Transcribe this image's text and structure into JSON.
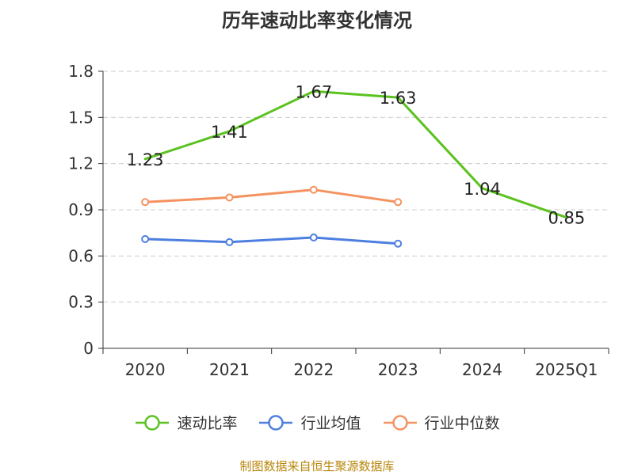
{
  "chart_data": {
    "type": "line",
    "title": "历年速动比率变化情况",
    "categories": [
      "2020",
      "2021",
      "2022",
      "2023",
      "2024",
      "2025Q1"
    ],
    "ylim": [
      0,
      1.8
    ],
    "yticks": [
      "0",
      "0.3",
      "0.6",
      "0.9",
      "1.2",
      "1.5",
      "1.8"
    ],
    "grid": true,
    "legend_position": "bottom",
    "series": [
      {
        "name": "速动比率",
        "color": "#5bc21f",
        "values": [
          1.23,
          1.41,
          1.67,
          1.63,
          1.04,
          0.85
        ],
        "labels": [
          "1.23",
          "1.41",
          "1.67",
          "1.63",
          "1.04",
          "0.85"
        ],
        "show_markers": false
      },
      {
        "name": "行业均值",
        "color": "#4e7fe0",
        "values": [
          0.71,
          0.69,
          0.72,
          0.68,
          null,
          null
        ],
        "show_markers": true
      },
      {
        "name": "行业中位数",
        "color": "#f59260",
        "values": [
          0.95,
          0.98,
          1.03,
          0.95,
          null,
          null
        ],
        "show_markers": true
      }
    ]
  },
  "source": "制图数据来自恒生聚源数据库"
}
